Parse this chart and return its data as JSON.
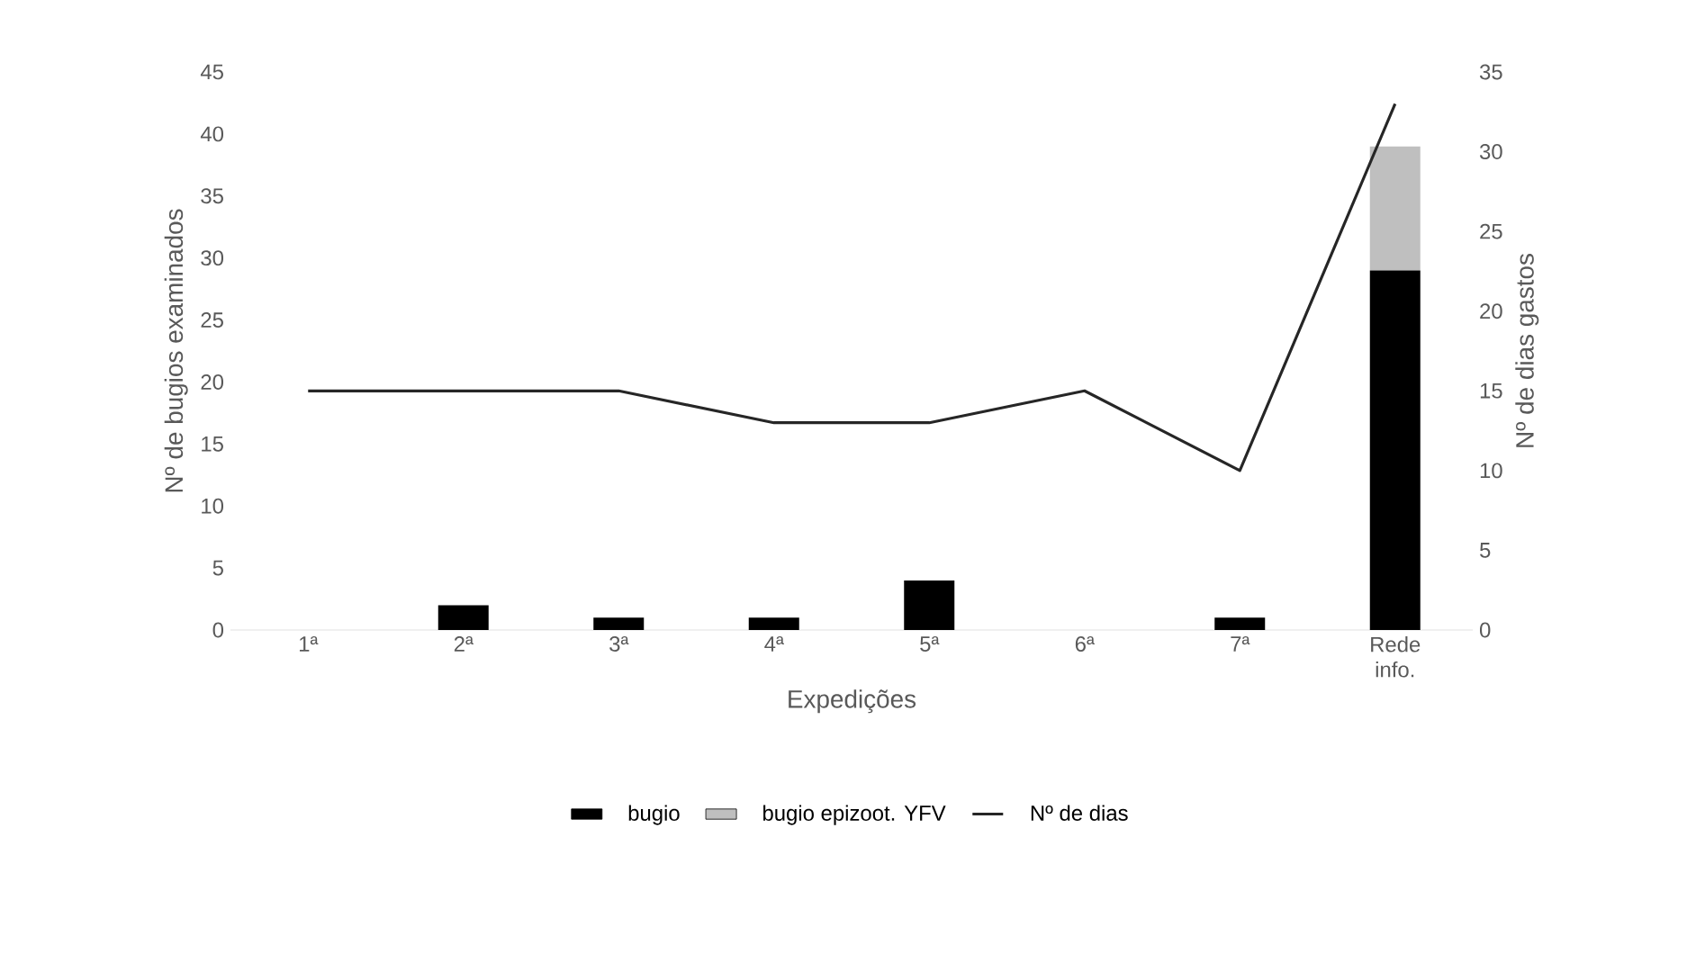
{
  "chart_data": {
    "type": "bar",
    "stacked": true,
    "categories": [
      "1ª",
      "2ª",
      "3ª",
      "4ª",
      "5ª",
      "6ª",
      "7ª",
      "Rede info."
    ],
    "xlabel": "Expedições",
    "ylabel": "Nº de bugios examinados",
    "y2label": "Nº de dias gastos",
    "ylim": [
      0,
      45
    ],
    "yticks": [
      0,
      5,
      10,
      15,
      20,
      25,
      30,
      35,
      40,
      45
    ],
    "y2lim": [
      0,
      35
    ],
    "y2ticks": [
      0,
      5,
      10,
      15,
      20,
      25,
      30,
      35
    ],
    "legend": "bottom",
    "grid": false,
    "series": [
      {
        "name": "bugio",
        "color": "#000000",
        "values": [
          0,
          2,
          1,
          1,
          4,
          0,
          1,
          29
        ]
      },
      {
        "name": "bugio epizoot. YFV",
        "color": "#bfbfbf",
        "values": [
          0,
          0,
          0,
          0,
          0,
          0,
          0,
          10
        ]
      },
      {
        "name": "Nº de dias",
        "type": "line",
        "axis": "y2",
        "color": "#262626",
        "values": [
          15,
          15,
          15,
          13,
          13,
          15,
          10,
          33
        ]
      }
    ]
  }
}
